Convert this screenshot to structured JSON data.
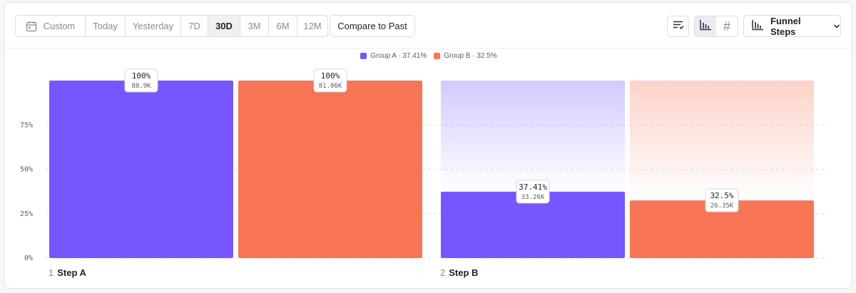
{
  "toolbar": {
    "date_ranges": [
      "Custom",
      "Today",
      "Yesterday",
      "7D",
      "30D",
      "3M",
      "6M",
      "12M"
    ],
    "active_range": "30D",
    "compare_label": "Compare to Past",
    "view_toggle": {
      "active": "bar",
      "icons": [
        "bar-chart-icon",
        "hash-icon"
      ]
    },
    "hash_glyph": "#",
    "funnel_dropdown_label": "Funnel Steps"
  },
  "legend": [
    {
      "text": "Group A · 37.41%",
      "color": "#7856ff"
    },
    {
      "text": "Group B · 32.5%",
      "color": "#f77555"
    }
  ],
  "steps": [
    {
      "number": "1",
      "name": "Step A"
    },
    {
      "number": "2",
      "name": "Step B"
    }
  ],
  "chart_data": {
    "type": "bar",
    "categories": [
      "Step A",
      "Step B"
    ],
    "series": [
      {
        "name": "Group A",
        "color": "#7856ff",
        "values": [
          100,
          37.41
        ],
        "labels": [
          "100%",
          "37.41%"
        ],
        "counts": [
          "88.9K",
          "33.26K"
        ]
      },
      {
        "name": "Group B",
        "color": "#f77555",
        "values": [
          100,
          32.5
        ],
        "labels": [
          "100%",
          "32.5%"
        ],
        "counts": [
          "81.06K",
          "26.35K"
        ]
      }
    ],
    "yticks": [
      "0%",
      "25%",
      "50%",
      "75%"
    ],
    "ytick_values": [
      0,
      25,
      50,
      75
    ],
    "ylim": [
      0,
      100
    ],
    "grid": true
  }
}
